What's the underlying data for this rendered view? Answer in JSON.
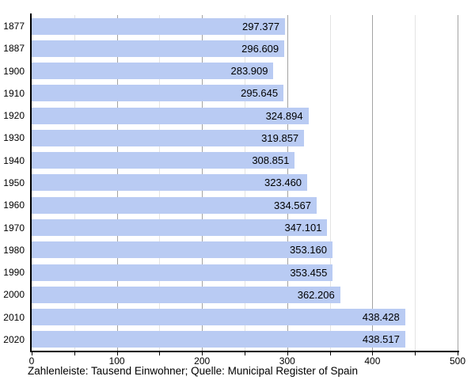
{
  "chart_data": {
    "type": "bar",
    "orientation": "horizontal",
    "title": "",
    "xlabel": "",
    "ylabel": "",
    "xlim": [
      0,
      500
    ],
    "grid": true,
    "categories": [
      "1877",
      "1887",
      "1900",
      "1910",
      "1920",
      "1930",
      "1940",
      "1950",
      "1960",
      "1970",
      "1980",
      "1990",
      "2000",
      "2010",
      "2020"
    ],
    "values": [
      297.377,
      296.609,
      283.909,
      295.645,
      324.894,
      319.857,
      308.851,
      323.46,
      334.567,
      347.101,
      353.16,
      353.455,
      362.206,
      438.428,
      438.517
    ],
    "value_labels": [
      "297.377",
      "296.609",
      "283.909",
      "295.645",
      "324.894",
      "319.857",
      "308.851",
      "323.460",
      "334.567",
      "347.101",
      "353.160",
      "353.455",
      "362.206",
      "438.428",
      "438.517"
    ],
    "x_major_ticks": [
      0,
      100,
      200,
      300,
      400,
      500
    ],
    "x_major_tick_labels": [
      "0",
      "100",
      "200",
      "300",
      "400",
      "500"
    ],
    "x_minor_ticks": [
      50,
      150,
      250,
      350,
      450
    ],
    "legend": null,
    "caption": "Zahlenleiste: Tausend Einwohner; Quelle: Municipal Register of Spain",
    "colors": {
      "bar": "#b9cbf3",
      "major_grid": "#a3a3a3",
      "minor_grid": "#e3e3e3",
      "axis": "#000000",
      "text": "#000000",
      "background": "#ffffff"
    }
  }
}
